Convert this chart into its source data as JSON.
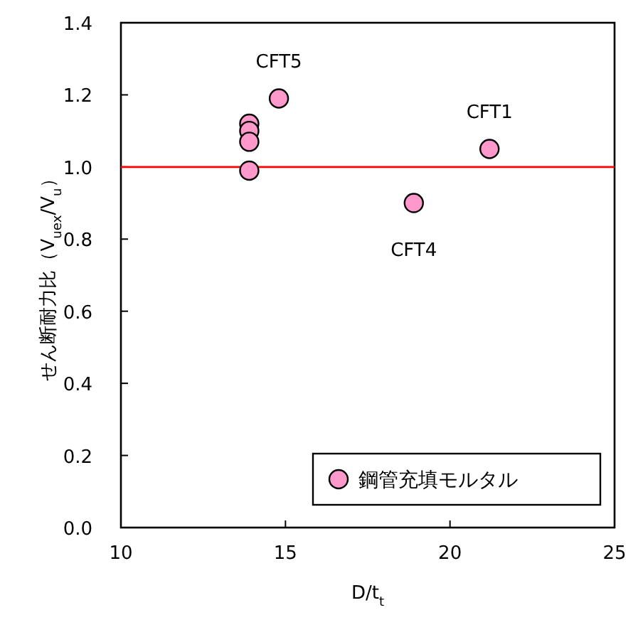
{
  "chart_data": {
    "type": "scatter",
    "xlabel": "D/t$_{t}$",
    "ylabel": "せん断耐力比（V$_{uex}$/V$_{u}$）",
    "x": [
      13.9,
      13.9,
      13.9,
      13.9,
      14.8,
      18.9,
      21.2
    ],
    "series": [
      {
        "name": "鋼管充填モルタル",
        "color": "#ff99cc",
        "values": [
          1.12,
          1.1,
          1.07,
          0.99,
          1.19,
          0.9,
          1.05
        ]
      }
    ],
    "xlim": [
      10,
      25
    ],
    "xticks": [
      10,
      15,
      20,
      25
    ],
    "ylim": [
      0,
      1.4
    ],
    "yticks": [
      {
        "value": 0,
        "label": "0.0"
      },
      {
        "value": 0.2,
        "label": "0.2"
      },
      {
        "value": 0.4,
        "label": "0.4"
      },
      {
        "value": 0.6,
        "label": "0.6"
      },
      {
        "value": 0.8,
        "label": "0.8"
      },
      {
        "value": 1.0,
        "label": "1.0"
      },
      {
        "value": 1.2,
        "label": "1.2"
      },
      {
        "value": 1.4,
        "label": "1.4"
      }
    ],
    "ref_lines": [
      {
        "axis": "y",
        "value": 1.0,
        "color": "#ff0000"
      }
    ],
    "annotations": [
      {
        "text": "CFT5",
        "x": 14.8,
        "y": 1.19
      },
      {
        "text": "CFT1",
        "x": 21.2,
        "y": 1.05
      },
      {
        "text": "CFT4",
        "x": 18.9,
        "y": 0.9
      }
    ],
    "marker": "circle",
    "legend": "bottom right",
    "grid": false
  }
}
